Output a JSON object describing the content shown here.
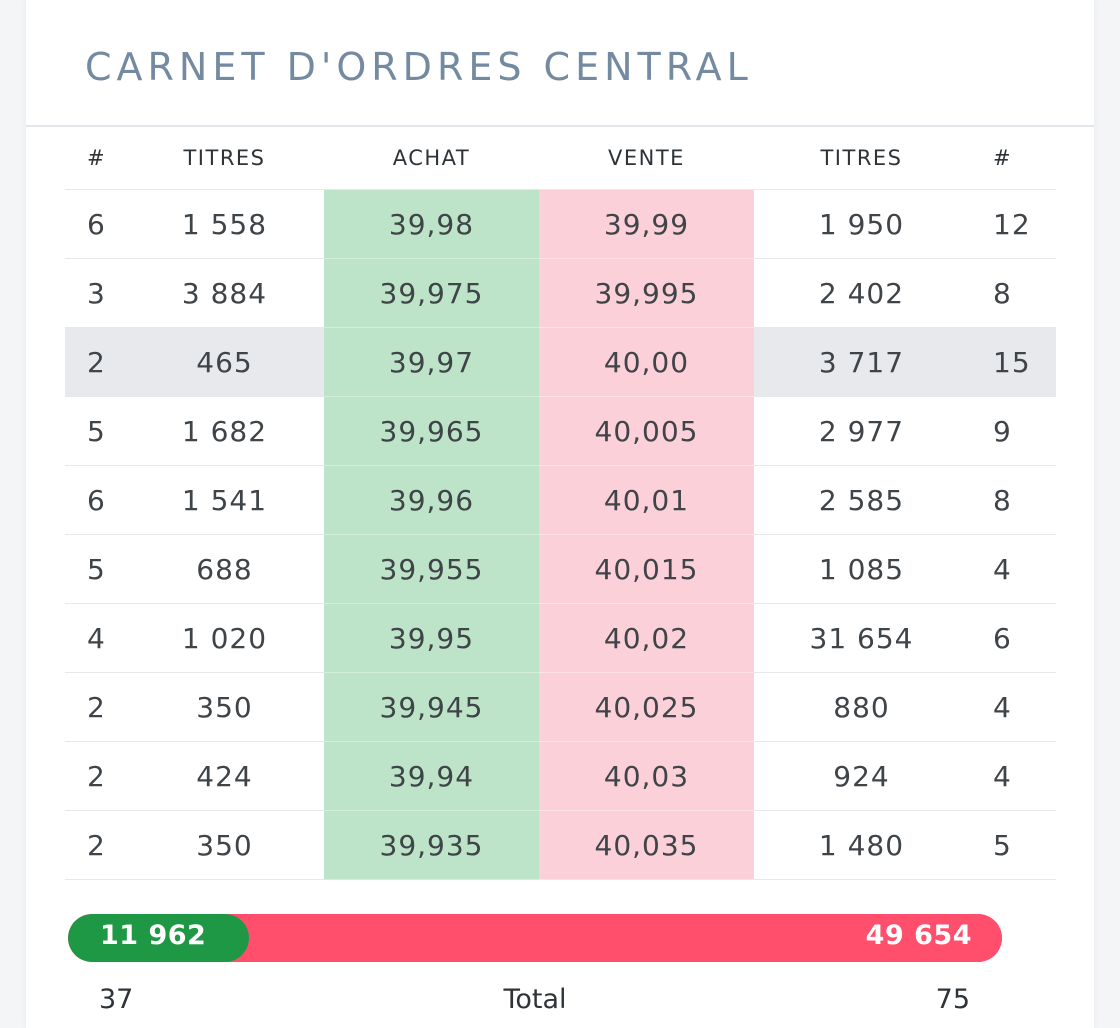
{
  "title": "CARNET D'ORDRES CENTRAL",
  "columns": {
    "bid_count": "#",
    "bid_qty": "TITRES",
    "bid_price": "ACHAT",
    "ask_price": "VENTE",
    "ask_qty": "TITRES",
    "ask_count": "#"
  },
  "rows": [
    {
      "bid_count": "6",
      "bid_qty": "1 558",
      "bid_price": "39,98",
      "ask_price": "39,99",
      "ask_qty": "1 950",
      "ask_count": "12"
    },
    {
      "bid_count": "3",
      "bid_qty": "3 884",
      "bid_price": "39,975",
      "ask_price": "39,995",
      "ask_qty": "2 402",
      "ask_count": "8"
    },
    {
      "bid_count": "2",
      "bid_qty": "465",
      "bid_price": "39,97",
      "ask_price": "40,00",
      "ask_qty": "3 717",
      "ask_count": "15"
    },
    {
      "bid_count": "5",
      "bid_qty": "1 682",
      "bid_price": "39,965",
      "ask_price": "40,005",
      "ask_qty": "2 977",
      "ask_count": "9"
    },
    {
      "bid_count": "6",
      "bid_qty": "1 541",
      "bid_price": "39,96",
      "ask_price": "40,01",
      "ask_qty": "2 585",
      "ask_count": "8"
    },
    {
      "bid_count": "5",
      "bid_qty": "688",
      "bid_price": "39,955",
      "ask_price": "40,015",
      "ask_qty": "1 085",
      "ask_count": "4"
    },
    {
      "bid_count": "4",
      "bid_qty": "1 020",
      "bid_price": "39,95",
      "ask_price": "40,02",
      "ask_qty": "31 654",
      "ask_count": "6"
    },
    {
      "bid_count": "2",
      "bid_qty": "350",
      "bid_price": "39,945",
      "ask_price": "40,025",
      "ask_qty": "880",
      "ask_count": "4"
    },
    {
      "bid_count": "2",
      "bid_qty": "424",
      "bid_price": "39,94",
      "ask_price": "40,03",
      "ask_qty": "924",
      "ask_count": "4"
    },
    {
      "bid_count": "2",
      "bid_qty": "350",
      "bid_price": "39,935",
      "ask_price": "40,035",
      "ask_qty": "1 480",
      "ask_count": "5"
    }
  ],
  "highlighted_row": 2,
  "summary": {
    "buy_total_qty": "11 962",
    "sell_total_qty": "49 654",
    "buy_share": 0.194,
    "buy_total_orders": "37",
    "total_label": "Total",
    "sell_total_orders": "75"
  },
  "colors": {
    "title": "#738aa1",
    "buy_cell": "#bde4c8",
    "sell_cell": "#fcd0d8",
    "buy_bar": "#1f9845",
    "sell_bar": "#ff4f6d",
    "highlight_row": "#e7e9ec"
  }
}
